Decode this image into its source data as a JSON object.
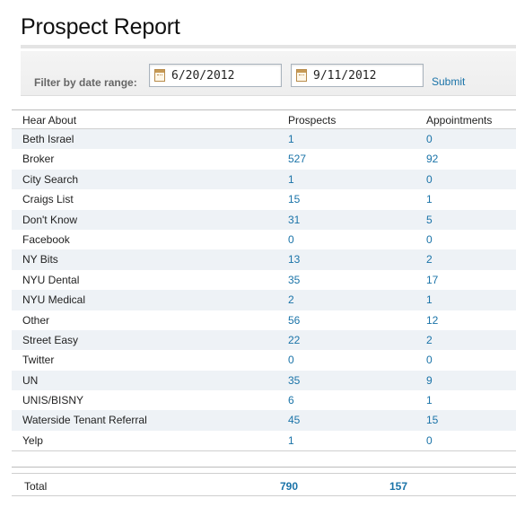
{
  "page_title": "Prospect Report",
  "filter": {
    "label": "Filter by date range:",
    "from_date": "6/20/2012",
    "to_date": "9/11/2012",
    "submit_label": "Submit",
    "icon": "calendar-icon"
  },
  "table": {
    "headers": {
      "source": "Hear About",
      "prospects": "Prospects",
      "appointments": "Appointments"
    },
    "rows": [
      {
        "source": "Beth Israel",
        "prospects": "1",
        "appointments": "0"
      },
      {
        "source": "Broker",
        "prospects": "527",
        "appointments": "92"
      },
      {
        "source": "City Search",
        "prospects": "1",
        "appointments": "0"
      },
      {
        "source": "Craigs List",
        "prospects": "15",
        "appointments": "1"
      },
      {
        "source": "Don't Know",
        "prospects": "31",
        "appointments": "5"
      },
      {
        "source": "Facebook",
        "prospects": "0",
        "appointments": "0"
      },
      {
        "source": "NY Bits",
        "prospects": "13",
        "appointments": "2"
      },
      {
        "source": "NYU Dental",
        "prospects": "35",
        "appointments": "17"
      },
      {
        "source": "NYU Medical",
        "prospects": "2",
        "appointments": "1"
      },
      {
        "source": "Other",
        "prospects": "56",
        "appointments": "12"
      },
      {
        "source": "Street Easy",
        "prospects": "22",
        "appointments": "2"
      },
      {
        "source": "Twitter",
        "prospects": "0",
        "appointments": "0"
      },
      {
        "source": "UN",
        "prospects": "35",
        "appointments": "9"
      },
      {
        "source": "UNIS/BISNY",
        "prospects": "6",
        "appointments": "1"
      },
      {
        "source": "Waterside Tenant Referral",
        "prospects": "45",
        "appointments": "15"
      },
      {
        "source": "Yelp",
        "prospects": "1",
        "appointments": "0"
      }
    ]
  },
  "totals": {
    "label": "Total",
    "prospects": "790",
    "appointments": "157"
  },
  "colors": {
    "link": "#1a73a8",
    "row_alt": "#eef2f6"
  }
}
